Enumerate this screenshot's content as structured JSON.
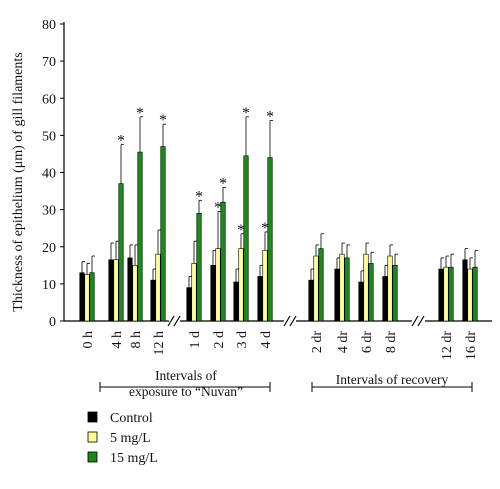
{
  "chart_data": {
    "type": "bar",
    "ylabel": "Thickness of epithelium (μm) of gill filaments",
    "ylim": [
      0,
      80
    ],
    "yticks": [
      0,
      10,
      20,
      30,
      40,
      50,
      60,
      70,
      80
    ],
    "grid": false,
    "legend_position": "bottom-left",
    "categories": [
      "0 h",
      "4 h",
      "8 h",
      "12 h",
      "1 d",
      "2 d",
      "3 d",
      "4 d",
      "2 dr",
      "4 dr",
      "6 dr",
      "8 dr",
      "12 dr",
      "16 dr"
    ],
    "series": [
      {
        "name": "Control",
        "color": "#000000",
        "values": [
          13,
          16.5,
          17,
          11,
          9,
          15,
          10.5,
          12,
          11,
          14,
          10.5,
          12,
          14,
          16.5
        ],
        "errors": [
          3,
          4.5,
          3.5,
          3,
          3,
          4,
          3.5,
          3,
          3,
          3,
          3,
          3,
          3,
          3
        ]
      },
      {
        "name": "5 mg/L",
        "color": "#ffff99",
        "values": [
          12.5,
          16.5,
          15,
          18,
          15.5,
          19.5,
          19.5,
          19,
          17.5,
          18,
          18,
          17.5,
          14.5,
          14
        ],
        "errors": [
          3,
          5,
          5.5,
          6.5,
          6,
          10,
          4,
          5,
          3,
          3,
          3,
          3,
          3,
          3
        ],
        "stars": [
          false,
          false,
          false,
          false,
          false,
          true,
          true,
          true,
          false,
          false,
          false,
          false,
          false,
          false
        ]
      },
      {
        "name": "15 mg/L",
        "color": "#1a8a1a",
        "values": [
          13,
          37,
          45.5,
          47,
          29,
          32,
          44.5,
          44,
          19.5,
          17,
          15.5,
          15,
          14.5,
          14.5
        ],
        "errors": [
          4.5,
          10.5,
          9.5,
          6,
          3.5,
          4,
          10.5,
          10,
          4,
          3.5,
          3,
          3,
          3.5,
          4.5
        ],
        "stars": [
          false,
          true,
          true,
          true,
          true,
          true,
          true,
          true,
          false,
          false,
          false,
          false,
          false,
          false
        ]
      }
    ],
    "star_symbol": "*",
    "group_labels": [
      "Intervals of exposure to “Nuvan”",
      "Intervals of recovery"
    ],
    "axis_break_symbol": "//"
  }
}
